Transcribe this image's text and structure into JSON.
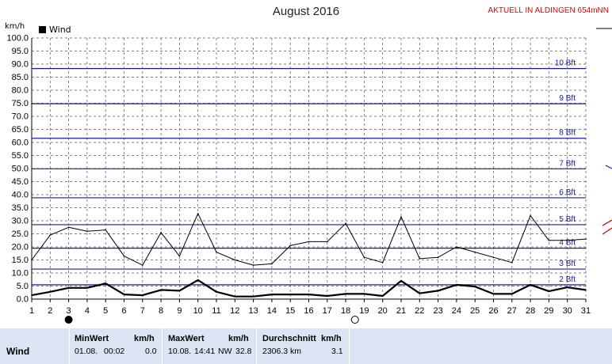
{
  "header": {
    "title": "August 2016",
    "station": "AKTUELL IN ALDINGEN 654mNN",
    "unit": "km/h"
  },
  "chart_data": {
    "type": "line",
    "title": "August 2016",
    "ylabel": "km/h",
    "ylim": [
      0,
      100
    ],
    "xlim": [
      1,
      31
    ],
    "y_ticks": [
      "0.0",
      "5.0",
      "10.0",
      "15.0",
      "20.0",
      "25.0",
      "30.0",
      "35.0",
      "40.0",
      "45.0",
      "50.0",
      "55.0",
      "60.0",
      "65.0",
      "70.0",
      "75.0",
      "80.0",
      "85.0",
      "90.0",
      "95.0",
      "100.0"
    ],
    "x_ticks": [
      "1",
      "2",
      "3",
      "4",
      "5",
      "6",
      "7",
      "8",
      "9",
      "10",
      "11",
      "12",
      "13",
      "14",
      "15",
      "16",
      "17",
      "18",
      "19",
      "20",
      "21",
      "22",
      "23",
      "24",
      "25",
      "26",
      "27",
      "28",
      "29",
      "30",
      "31"
    ],
    "grid": true,
    "legend": "top-left",
    "series": [
      {
        "name": "Wind",
        "color": "#000000",
        "x": [
          1,
          2,
          3,
          4,
          5,
          6,
          7,
          8,
          9,
          10,
          11,
          12,
          13,
          14,
          15,
          16,
          17,
          18,
          19,
          20,
          21,
          22,
          23,
          24,
          25,
          26,
          27,
          28,
          29,
          30,
          31
        ],
        "values": [
          1.5,
          2.8,
          4.3,
          4.3,
          6.0,
          1.8,
          1.5,
          3.5,
          3.2,
          7.3,
          2.8,
          1.0,
          1.0,
          1.8,
          1.8,
          1.8,
          1.2,
          2.0,
          2.0,
          1.2,
          7.0,
          2.2,
          3.2,
          5.5,
          4.8,
          2.0,
          2.0,
          5.5,
          3.0,
          4.5,
          3.5
        ]
      },
      {
        "name": "",
        "color": "#000000",
        "x": [
          1,
          2,
          3,
          4,
          5,
          6,
          7,
          8,
          9,
          10,
          11,
          12,
          13,
          14,
          15,
          16,
          17,
          18,
          19,
          20,
          21,
          22,
          23,
          24,
          25,
          26,
          27,
          28,
          29,
          30,
          31
        ],
        "values": [
          15.0,
          24.5,
          27.5,
          26.0,
          26.5,
          16.5,
          13.0,
          25.5,
          16.5,
          32.8,
          18.0,
          15.0,
          13.0,
          13.5,
          20.5,
          22.0,
          22.0,
          29.0,
          16.0,
          14.0,
          31.5,
          15.5,
          16.0,
          20.0,
          18.0,
          16.0,
          14.0,
          32.0,
          22.5,
          22.5,
          23.0
        ]
      }
    ],
    "beaufort_lines": [
      {
        "label": "2 Bft",
        "value": 5.5
      },
      {
        "label": "3 Bft",
        "value": 11.5
      },
      {
        "label": "4 Bft",
        "value": 19.5
      },
      {
        "label": "5 Bft",
        "value": 28.5
      },
      {
        "label": "6 Bft",
        "value": 38.8
      },
      {
        "label": "7 Bft",
        "value": 49.9
      },
      {
        "label": "8 Bft",
        "value": 61.6
      },
      {
        "label": "9 Bft",
        "value": 74.8
      },
      {
        "label": "10 Bft",
        "value": 88.3
      }
    ],
    "markers": [
      {
        "type": "new-moon",
        "x": 3
      },
      {
        "type": "full-moon",
        "x": 18.5
      }
    ],
    "colors": {
      "grid": "#555555",
      "beaufort": "#1a1aa0",
      "label": "#1a1aa0"
    }
  },
  "table": {
    "row_label": "Wind",
    "min": {
      "header": "MinWert",
      "unit": "km/h",
      "date": "01.08.",
      "time": "00:02",
      "value": "0.0"
    },
    "max": {
      "header": "MaxWert",
      "unit": "km/h",
      "date": "10.08.",
      "time": "14:41",
      "dir": "NW",
      "value": "32.8"
    },
    "avg": {
      "header": "Durchschnitt",
      "unit": "km/h",
      "distance": "2306.3 km",
      "value": "3.1"
    }
  }
}
